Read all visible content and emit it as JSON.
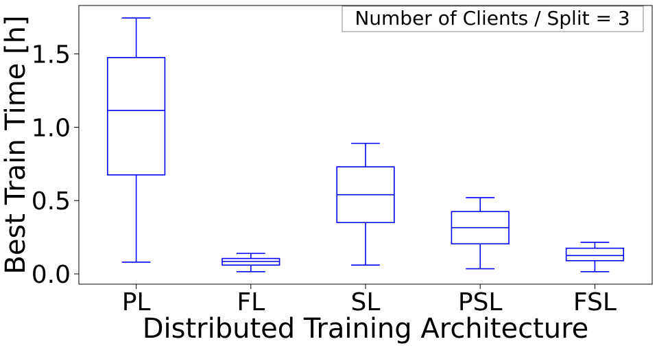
{
  "chart_data": {
    "type": "box",
    "annotation": "Number of Clients / Split = 3",
    "xlabel": "Distributed Training Architecture",
    "ylabel": "Best Train Time [h]",
    "ylim": [
      -0.07,
      1.83
    ],
    "yticks": [
      0.0,
      0.5,
      1.0,
      1.5
    ],
    "ytick_labels": [
      "0.0",
      "0.5",
      "1.0",
      "1.5"
    ],
    "grid": false,
    "box_color": "#0000ff",
    "categories": [
      "PL",
      "FL",
      "SL",
      "PSL",
      "FSL"
    ],
    "boxes": [
      {
        "label": "PL",
        "whisker_low": 0.08,
        "q1": 0.675,
        "median": 1.115,
        "q3": 1.475,
        "whisker_high": 1.745
      },
      {
        "label": "FL",
        "whisker_low": 0.015,
        "q1": 0.06,
        "median": 0.085,
        "q3": 0.105,
        "whisker_high": 0.14
      },
      {
        "label": "SL",
        "whisker_low": 0.06,
        "q1": 0.35,
        "median": 0.54,
        "q3": 0.73,
        "whisker_high": 0.89
      },
      {
        "label": "PSL",
        "whisker_low": 0.035,
        "q1": 0.205,
        "median": 0.315,
        "q3": 0.425,
        "whisker_high": 0.52
      },
      {
        "label": "FSL",
        "whisker_low": 0.015,
        "q1": 0.09,
        "median": 0.125,
        "q3": 0.175,
        "whisker_high": 0.215
      }
    ]
  }
}
